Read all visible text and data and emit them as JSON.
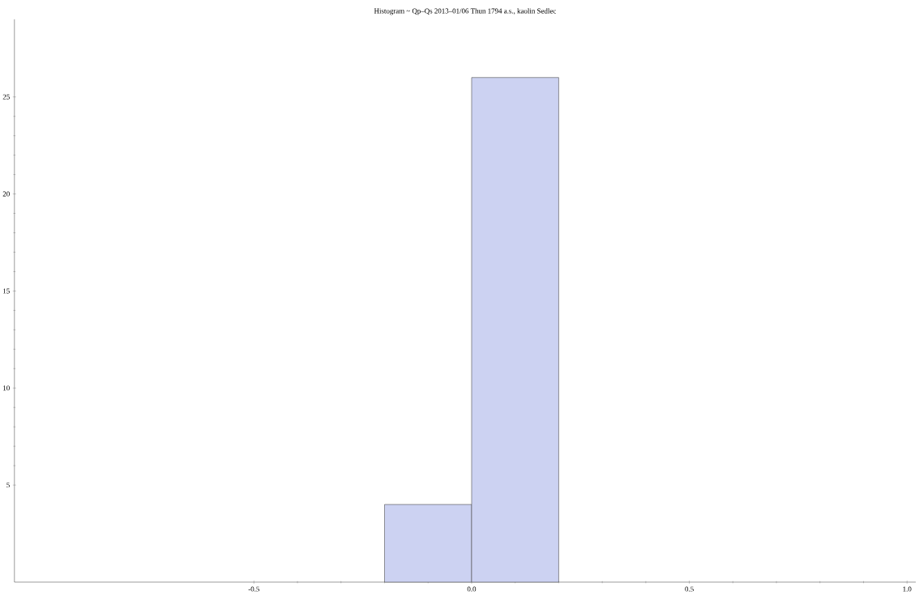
{
  "chart_data": {
    "type": "histogram",
    "title": "Histogram ~ Qp–Qs 2013–01/06 Thun 1794 a.s., kaolin Sedlec",
    "bins": [
      -0.2,
      0.0,
      0.2
    ],
    "values": [
      4,
      26
    ],
    "color": "#ccd2f2",
    "xlim": [
      -1.05,
      1.02
    ],
    "ylim": [
      0,
      29
    ],
    "xticks": [
      -0.5,
      {
        "value": 0,
        "label": "0.0"
      },
      0.5,
      {
        "value": 1,
        "label": "1.0"
      }
    ],
    "yticks": [
      5,
      10,
      15,
      20,
      25
    ],
    "grid": false
  }
}
